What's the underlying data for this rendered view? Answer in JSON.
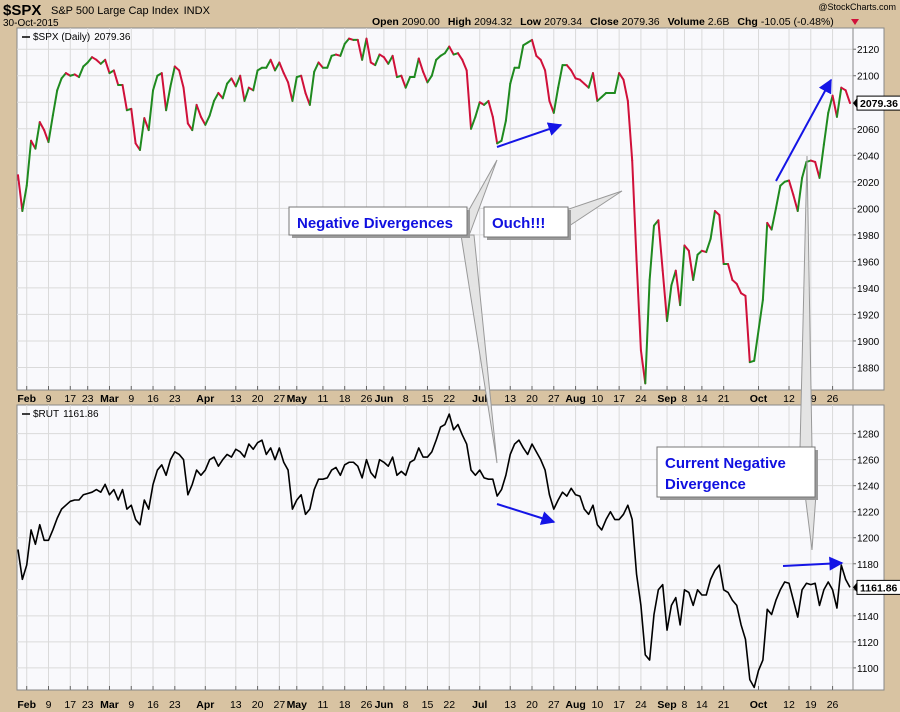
{
  "header": {
    "symbol": "$SPX",
    "name": "S&P 500 Large Cap Index",
    "exchange": "INDX",
    "date": "30-Oct-2015",
    "credit": "@StockCharts.com",
    "quote": [
      {
        "label": "Open",
        "value": "2090.00"
      },
      {
        "label": "High",
        "value": "2094.32"
      },
      {
        "label": "Low",
        "value": "2079.34"
      },
      {
        "label": "Close",
        "value": "2079.36"
      },
      {
        "label": "Volume",
        "value": "2.6B"
      },
      {
        "label": "Chg",
        "value": "-10.05 (-0.48%)"
      }
    ]
  },
  "chart_data": [
    {
      "type": "line",
      "grid": true,
      "categories": [
        null,
        null,
        "Feb",
        null,
        null,
        null,
        null,
        "9",
        null,
        null,
        null,
        null,
        "17",
        null,
        null,
        null,
        "23",
        null,
        null,
        null,
        null,
        "Mar",
        null,
        null,
        null,
        null,
        "9",
        null,
        null,
        null,
        null,
        "16",
        null,
        null,
        null,
        null,
        "23",
        null,
        null,
        null,
        null,
        null,
        null,
        "Apr",
        null,
        null,
        null,
        null,
        null,
        null,
        "13",
        null,
        null,
        null,
        null,
        "20",
        null,
        null,
        null,
        null,
        "27",
        null,
        null,
        null,
        "May",
        null,
        null,
        null,
        null,
        null,
        "11",
        null,
        null,
        null,
        null,
        "18",
        null,
        null,
        null,
        null,
        "26",
        null,
        null,
        null,
        "Jun",
        null,
        null,
        null,
        null,
        "8",
        null,
        null,
        null,
        null,
        "15",
        null,
        null,
        null,
        null,
        "22",
        null,
        null,
        null,
        null,
        null,
        null,
        "Jul",
        null,
        null,
        null,
        null,
        null,
        null,
        "13",
        null,
        null,
        null,
        null,
        "20",
        null,
        null,
        null,
        null,
        "27",
        null,
        null,
        null,
        null,
        "Aug",
        null,
        null,
        null,
        null,
        "10",
        null,
        null,
        null,
        null,
        "17",
        null,
        null,
        null,
        null,
        "24",
        null,
        null,
        null,
        null,
        null,
        "Sep",
        null,
        null,
        null,
        "8",
        null,
        null,
        null,
        "14",
        null,
        null,
        null,
        null,
        "21",
        null,
        null,
        null,
        null,
        null,
        null,
        null,
        "Oct",
        null,
        null,
        null,
        null,
        null,
        null,
        "12",
        null,
        null,
        null,
        null,
        "19",
        null,
        null,
        null,
        null,
        "26",
        null,
        null,
        null,
        null
      ],
      "series": [
        {
          "name": "$SPX (Daily)",
          "up_color": "#1f8a1f",
          "down_color": "#d0103a",
          "values": [
            2025,
            1998,
            2017,
            2051,
            2045,
            2065,
            2059,
            2050,
            2070,
            2089,
            2098,
            2102,
            2100,
            2101,
            2099,
            2107,
            2110,
            2114,
            2112,
            2109,
            2112,
            2102,
            2104,
            2093,
            2093,
            2074,
            2075,
            2049,
            2044,
            2068,
            2059,
            2089,
            2100,
            2102,
            2074,
            2092,
            2107,
            2104,
            2091,
            2064,
            2059,
            2078,
            2069,
            2063,
            2070,
            2081,
            2087,
            2083,
            2094,
            2098,
            2092,
            2100,
            2081,
            2091,
            2089,
            2104,
            2106,
            2106,
            2112,
            2104,
            2110,
            2102,
            2095,
            2081,
            2099,
            2100,
            2087,
            2078,
            2103,
            2110,
            2106,
            2106,
            2115,
            2116,
            2115,
            2124,
            2128,
            2127,
            2127,
            2112,
            2128,
            2110,
            2108,
            2116,
            2114,
            2109,
            2115,
            2099,
            2100,
            2091,
            2099,
            2099,
            2113,
            2103,
            2095,
            2100,
            2112,
            2115,
            2117,
            2122,
            2116,
            2117,
            2112,
            2104,
            2060,
            2069,
            2080,
            2078,
            2081,
            2069,
            2049,
            2051,
            2066,
            2094,
            2106,
            2106,
            2123,
            2125,
            2127,
            2115,
            2112,
            2104,
            2081,
            2072,
            2091,
            2108,
            2108,
            2104,
            2098,
            2097,
            2094,
            2091,
            2102,
            2081,
            2084,
            2087,
            2087,
            2087,
            2102,
            2097,
            2081,
            2036,
            1961,
            1893,
            1868,
            1946,
            1987,
            1991,
            1953,
            1915,
            1942,
            1953,
            1927,
            1972,
            1968,
            1946,
            1965,
            1968,
            1967,
            1977,
            1998,
            1995,
            1958,
            1958,
            1946,
            1943,
            1936,
            1934,
            1884,
            1885,
            1908,
            1931,
            1989,
            1984,
            2000,
            2017,
            2020,
            2021,
            2010,
            1998,
            2023,
            2035,
            2036,
            2035,
            2023,
            2048,
            2072,
            2085,
            2069,
            2091,
            2089,
            2079.36
          ]
        }
      ],
      "ylim": [
        1863,
        2136
      ],
      "yticks": [
        1880,
        1900,
        1920,
        1940,
        1960,
        1980,
        2000,
        2020,
        2040,
        2060,
        2080,
        2100,
        2120
      ],
      "annotations": [
        "Negative Divergences",
        "Ouch!!!"
      ]
    },
    {
      "type": "line",
      "grid": true,
      "categories": [
        null,
        null,
        "Feb",
        null,
        null,
        null,
        null,
        "9",
        null,
        null,
        null,
        null,
        "17",
        null,
        null,
        null,
        "23",
        null,
        null,
        null,
        null,
        "Mar",
        null,
        null,
        null,
        null,
        "9",
        null,
        null,
        null,
        null,
        "16",
        null,
        null,
        null,
        null,
        "23",
        null,
        null,
        null,
        null,
        null,
        null,
        "Apr",
        null,
        null,
        null,
        null,
        null,
        null,
        "13",
        null,
        null,
        null,
        null,
        "20",
        null,
        null,
        null,
        null,
        "27",
        null,
        null,
        null,
        "May",
        null,
        null,
        null,
        null,
        null,
        "11",
        null,
        null,
        null,
        null,
        "18",
        null,
        null,
        null,
        null,
        "26",
        null,
        null,
        null,
        "Jun",
        null,
        null,
        null,
        null,
        "8",
        null,
        null,
        null,
        null,
        "15",
        null,
        null,
        null,
        null,
        "22",
        null,
        null,
        null,
        null,
        null,
        null,
        "Jul",
        null,
        null,
        null,
        null,
        null,
        null,
        "13",
        null,
        null,
        null,
        null,
        "20",
        null,
        null,
        null,
        null,
        "27",
        null,
        null,
        null,
        null,
        "Aug",
        null,
        null,
        null,
        null,
        "10",
        null,
        null,
        null,
        null,
        "17",
        null,
        null,
        null,
        null,
        "24",
        null,
        null,
        null,
        null,
        null,
        "Sep",
        null,
        null,
        null,
        "8",
        null,
        null,
        null,
        "14",
        null,
        null,
        null,
        null,
        "21",
        null,
        null,
        null,
        null,
        null,
        null,
        null,
        "Oct",
        null,
        null,
        null,
        null,
        null,
        null,
        "12",
        null,
        null,
        null,
        null,
        "19",
        null,
        null,
        null,
        null,
        "26",
        null,
        null,
        null,
        null
      ],
      "series": [
        {
          "name": "$RUT",
          "color": "#000000",
          "values": [
            1191,
            1168,
            1179,
            1206,
            1195,
            1210,
            1198,
            1198,
            1206,
            1215,
            1222,
            1225,
            1228,
            1229,
            1229,
            1233,
            1234,
            1235,
            1237,
            1235,
            1241,
            1233,
            1237,
            1229,
            1237,
            1222,
            1225,
            1214,
            1210,
            1229,
            1222,
            1241,
            1252,
            1256,
            1248,
            1260,
            1266,
            1264,
            1260,
            1233,
            1241,
            1252,
            1248,
            1252,
            1260,
            1262,
            1255,
            1260,
            1264,
            1262,
            1268,
            1266,
            1262,
            1272,
            1268,
            1273,
            1275,
            1264,
            1269,
            1260,
            1269,
            1258,
            1252,
            1222,
            1229,
            1233,
            1218,
            1222,
            1237,
            1245,
            1245,
            1246,
            1252,
            1254,
            1248,
            1256,
            1258,
            1258,
            1255,
            1246,
            1260,
            1250,
            1246,
            1260,
            1258,
            1255,
            1262,
            1248,
            1251,
            1248,
            1258,
            1260,
            1269,
            1262,
            1262,
            1266,
            1275,
            1285,
            1287,
            1295,
            1283,
            1287,
            1279,
            1272,
            1252,
            1248,
            1252,
            1246,
            1245,
            1245,
            1232,
            1237,
            1248,
            1264,
            1272,
            1275,
            1269,
            1264,
            1272,
            1266,
            1260,
            1252,
            1233,
            1222,
            1229,
            1235,
            1232,
            1238,
            1233,
            1232,
            1222,
            1218,
            1225,
            1210,
            1206,
            1214,
            1220,
            1214,
            1214,
            1218,
            1225,
            1214,
            1172,
            1148,
            1110,
            1106,
            1141,
            1160,
            1164,
            1129,
            1148,
            1154,
            1133,
            1160,
            1158,
            1148,
            1160,
            1156,
            1156,
            1168,
            1175,
            1179,
            1160,
            1158,
            1152,
            1148,
            1133,
            1122,
            1091,
            1085,
            1098,
            1106,
            1145,
            1141,
            1152,
            1160,
            1166,
            1165,
            1152,
            1139,
            1160,
            1165,
            1164,
            1165,
            1148,
            1160,
            1166,
            1160,
            1146,
            1179,
            1168,
            1161.86
          ]
        }
      ],
      "ylim": [
        1083,
        1302
      ],
      "yticks": [
        1100,
        1120,
        1140,
        1160,
        1180,
        1200,
        1220,
        1240,
        1260,
        1280
      ],
      "annotations": [
        "Current Negative Divergence"
      ]
    }
  ]
}
